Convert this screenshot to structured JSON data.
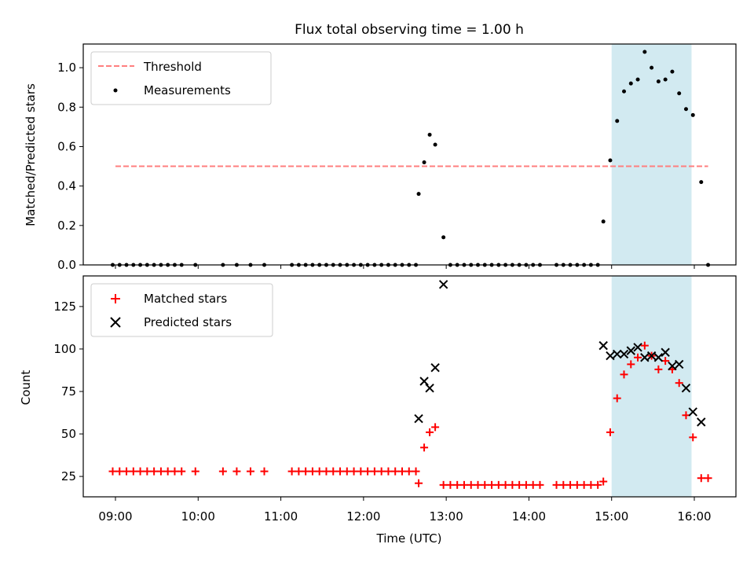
{
  "chart_data": [
    {
      "type": "scatter",
      "title": "Flux total observing time = 1.00 h",
      "ylabel": "Matched/Predicted stars",
      "ylim": [
        0,
        1.12
      ],
      "yticks": [
        "0.0",
        "0.2",
        "0.4",
        "0.6",
        "0.8",
        "1.0"
      ],
      "highlight_span": [
        "15:00",
        "15:58"
      ],
      "highlight_color": "#add8e6",
      "legend_position": "top-left",
      "threshold": {
        "name": "Threshold",
        "value": 0.5,
        "x_range": [
          "09:00",
          "16:10"
        ],
        "color": "#ff7f7f"
      },
      "series": [
        {
          "name": "Measurements",
          "color": "#000000",
          "points": [
            [
              "08:58",
              0
            ],
            [
              "09:03",
              0
            ],
            [
              "09:08",
              0
            ],
            [
              "09:13",
              0
            ],
            [
              "09:18",
              0
            ],
            [
              "09:23",
              0
            ],
            [
              "09:28",
              0
            ],
            [
              "09:33",
              0
            ],
            [
              "09:38",
              0
            ],
            [
              "09:43",
              0
            ],
            [
              "09:48",
              0
            ],
            [
              "09:58",
              0
            ],
            [
              "10:18",
              0
            ],
            [
              "10:28",
              0
            ],
            [
              "10:38",
              0
            ],
            [
              "10:48",
              0
            ],
            [
              "11:08",
              0
            ],
            [
              "11:13",
              0
            ],
            [
              "11:18",
              0
            ],
            [
              "11:23",
              0
            ],
            [
              "11:28",
              0
            ],
            [
              "11:33",
              0
            ],
            [
              "11:38",
              0
            ],
            [
              "11:43",
              0
            ],
            [
              "11:48",
              0
            ],
            [
              "11:53",
              0
            ],
            [
              "11:58",
              0
            ],
            [
              "12:03",
              0
            ],
            [
              "12:08",
              0
            ],
            [
              "12:13",
              0
            ],
            [
              "12:18",
              0
            ],
            [
              "12:23",
              0
            ],
            [
              "12:28",
              0
            ],
            [
              "12:33",
              0
            ],
            [
              "12:38",
              0
            ],
            [
              "12:40",
              0.36
            ],
            [
              "12:44",
              0.52
            ],
            [
              "12:48",
              0.66
            ],
            [
              "12:52",
              0.61
            ],
            [
              "12:58",
              0.14
            ],
            [
              "13:03",
              0
            ],
            [
              "13:08",
              0
            ],
            [
              "13:13",
              0
            ],
            [
              "13:18",
              0
            ],
            [
              "13:23",
              0
            ],
            [
              "13:28",
              0
            ],
            [
              "13:33",
              0
            ],
            [
              "13:38",
              0
            ],
            [
              "13:43",
              0
            ],
            [
              "13:48",
              0
            ],
            [
              "13:53",
              0
            ],
            [
              "13:58",
              0
            ],
            [
              "14:03",
              0
            ],
            [
              "14:08",
              0
            ],
            [
              "14:20",
              0
            ],
            [
              "14:25",
              0
            ],
            [
              "14:30",
              0
            ],
            [
              "14:35",
              0
            ],
            [
              "14:40",
              0
            ],
            [
              "14:45",
              0
            ],
            [
              "14:50",
              0
            ],
            [
              "14:54",
              0.22
            ],
            [
              "14:59",
              0.53
            ],
            [
              "15:04",
              0.73
            ],
            [
              "15:09",
              0.88
            ],
            [
              "15:14",
              0.92
            ],
            [
              "15:19",
              0.94
            ],
            [
              "15:24",
              1.08
            ],
            [
              "15:29",
              1.0
            ],
            [
              "15:34",
              0.93
            ],
            [
              "15:39",
              0.94
            ],
            [
              "15:44",
              0.98
            ],
            [
              "15:49",
              0.87
            ],
            [
              "15:54",
              0.79
            ],
            [
              "15:59",
              0.76
            ],
            [
              "16:05",
              0.42
            ],
            [
              "16:10",
              0
            ]
          ]
        }
      ]
    },
    {
      "type": "scatter",
      "xlabel": "Time (UTC)",
      "ylabel": "Count",
      "ylim": [
        13,
        143
      ],
      "yticks": [
        "25",
        "50",
        "75",
        "100",
        "125"
      ],
      "xticks": [
        "09:00",
        "10:00",
        "11:00",
        "12:00",
        "13:00",
        "14:00",
        "15:00",
        "16:00"
      ],
      "highlight_span": [
        "15:00",
        "15:58"
      ],
      "highlight_color": "#add8e6",
      "legend_position": "top-left",
      "series": [
        {
          "name": "Matched stars",
          "marker": "+",
          "color": "#ff0000",
          "points": [
            [
              "08:58",
              28
            ],
            [
              "09:03",
              28
            ],
            [
              "09:08",
              28
            ],
            [
              "09:13",
              28
            ],
            [
              "09:18",
              28
            ],
            [
              "09:23",
              28
            ],
            [
              "09:28",
              28
            ],
            [
              "09:33",
              28
            ],
            [
              "09:38",
              28
            ],
            [
              "09:43",
              28
            ],
            [
              "09:48",
              28
            ],
            [
              "09:58",
              28
            ],
            [
              "10:18",
              28
            ],
            [
              "10:28",
              28
            ],
            [
              "10:38",
              28
            ],
            [
              "10:48",
              28
            ],
            [
              "11:08",
              28
            ],
            [
              "11:13",
              28
            ],
            [
              "11:18",
              28
            ],
            [
              "11:23",
              28
            ],
            [
              "11:28",
              28
            ],
            [
              "11:33",
              28
            ],
            [
              "11:38",
              28
            ],
            [
              "11:43",
              28
            ],
            [
              "11:48",
              28
            ],
            [
              "11:53",
              28
            ],
            [
              "11:58",
              28
            ],
            [
              "12:03",
              28
            ],
            [
              "12:08",
              28
            ],
            [
              "12:13",
              28
            ],
            [
              "12:18",
              28
            ],
            [
              "12:23",
              28
            ],
            [
              "12:28",
              28
            ],
            [
              "12:33",
              28
            ],
            [
              "12:38",
              28
            ],
            [
              "12:40",
              21
            ],
            [
              "12:44",
              42
            ],
            [
              "12:48",
              51
            ],
            [
              "12:52",
              54
            ],
            [
              "12:58",
              20
            ],
            [
              "13:03",
              20
            ],
            [
              "13:08",
              20
            ],
            [
              "13:13",
              20
            ],
            [
              "13:18",
              20
            ],
            [
              "13:23",
              20
            ],
            [
              "13:28",
              20
            ],
            [
              "13:33",
              20
            ],
            [
              "13:38",
              20
            ],
            [
              "13:43",
              20
            ],
            [
              "13:48",
              20
            ],
            [
              "13:53",
              20
            ],
            [
              "13:58",
              20
            ],
            [
              "14:03",
              20
            ],
            [
              "14:08",
              20
            ],
            [
              "14:20",
              20
            ],
            [
              "14:25",
              20
            ],
            [
              "14:30",
              20
            ],
            [
              "14:35",
              20
            ],
            [
              "14:40",
              20
            ],
            [
              "14:45",
              20
            ],
            [
              "14:50",
              20
            ],
            [
              "14:54",
              22
            ],
            [
              "14:59",
              51
            ],
            [
              "15:04",
              71
            ],
            [
              "15:09",
              85
            ],
            [
              "15:14",
              91
            ],
            [
              "15:19",
              95
            ],
            [
              "15:24",
              102
            ],
            [
              "15:29",
              96
            ],
            [
              "15:34",
              88
            ],
            [
              "15:39",
              93
            ],
            [
              "15:44",
              88
            ],
            [
              "15:49",
              80
            ],
            [
              "15:54",
              61
            ],
            [
              "15:59",
              48
            ],
            [
              "16:05",
              24
            ],
            [
              "16:10",
              24
            ]
          ]
        },
        {
          "name": "Predicted stars",
          "marker": "x",
          "color": "#000000",
          "points": [
            [
              "12:40",
              59
            ],
            [
              "12:44",
              81
            ],
            [
              "12:48",
              77
            ],
            [
              "12:52",
              89
            ],
            [
              "12:58",
              138
            ],
            [
              "14:54",
              102
            ],
            [
              "14:59",
              96
            ],
            [
              "15:04",
              97
            ],
            [
              "15:09",
              97
            ],
            [
              "15:14",
              99
            ],
            [
              "15:19",
              101
            ],
            [
              "15:24",
              95
            ],
            [
              "15:29",
              96
            ],
            [
              "15:34",
              95
            ],
            [
              "15:39",
              98
            ],
            [
              "15:44",
              90
            ],
            [
              "15:49",
              91
            ],
            [
              "15:54",
              77
            ],
            [
              "15:59",
              63
            ],
            [
              "16:05",
              57
            ]
          ]
        }
      ]
    }
  ]
}
